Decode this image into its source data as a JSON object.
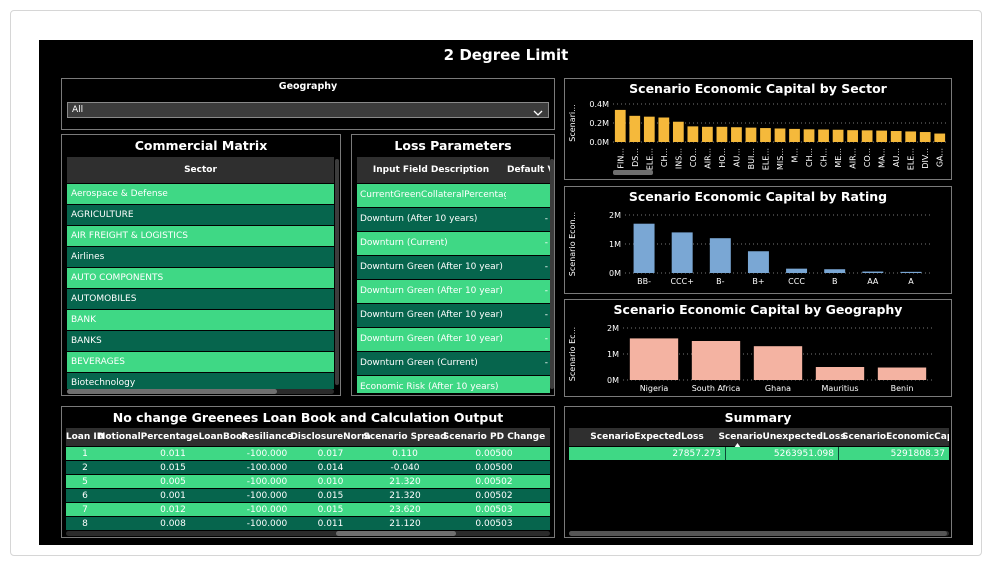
{
  "dashboard": {
    "title": "2 Degree Limit"
  },
  "geography": {
    "label": "Geography",
    "selected": "All"
  },
  "commercial_matrix": {
    "title": "Commercial Matrix",
    "column": "Sector",
    "items": [
      "Aerospace & Defense",
      "AGRICULTURE",
      "AIR FREIGHT & LOGISTICS",
      "Airlines",
      "AUTO COMPONENTS",
      "AUTOMOBILES",
      "BANK",
      "BANKS",
      "BEVERAGES",
      "Biotechnology"
    ]
  },
  "loss_parameters": {
    "title": "Loss Parameters",
    "columns": [
      "Input Field Description",
      "Default V"
    ],
    "rows": [
      {
        "desc": "CurrentGreenCollateralPercentage",
        "val": ""
      },
      {
        "desc": "Downturn (After 10 years)",
        "val": "-"
      },
      {
        "desc": "Downturn (Current)",
        "val": "-"
      },
      {
        "desc": "Downturn Green (After 10 year)",
        "val": "-"
      },
      {
        "desc": "Downturn Green (After 10 year)",
        "val": "-"
      },
      {
        "desc": "Downturn Green (After 10 year)",
        "val": "-"
      },
      {
        "desc": "Downturn Green (After 10 year)",
        "val": "-"
      },
      {
        "desc": "Downturn Green (Current)",
        "val": "-"
      },
      {
        "desc": "Economic Risk (After 10 years)",
        "val": ""
      }
    ]
  },
  "loan_book": {
    "title": "No change Greenees Loan Book and Calculation Output",
    "columns": [
      "Loan ID",
      "NotionalPercentageLoanBook",
      "Resiliance",
      "DisclosureNorm",
      "Scenario Spread",
      "Scenario PD Change"
    ],
    "rows": [
      [
        "1",
        "0.011",
        "-100.000",
        "0.017",
        "0.110",
        "0.00500"
      ],
      [
        "2",
        "0.015",
        "-100.000",
        "0.014",
        "-0.040",
        "0.00500"
      ],
      [
        "5",
        "0.005",
        "-100.000",
        "0.010",
        "21.320",
        "0.00502"
      ],
      [
        "6",
        "0.001",
        "-100.000",
        "0.015",
        "21.320",
        "0.00502"
      ],
      [
        "7",
        "0.012",
        "-100.000",
        "0.015",
        "23.620",
        "0.00503"
      ],
      [
        "8",
        "0.008",
        "-100.000",
        "0.011",
        "21.120",
        "0.00503"
      ]
    ]
  },
  "summary": {
    "title": "Summary",
    "columns": [
      "ScenarioExpectedLoss",
      "ScenarioUnexpectedLoss",
      "ScenarioEconomicCapita"
    ],
    "values": [
      "27857.273",
      "5263951.098",
      "5291808.37"
    ]
  },
  "colors": {
    "green_light": "#3fd885",
    "green_dark": "#06654d",
    "sector_bar": "#f5b93b",
    "rating_bar": "#7aa7d4",
    "geo_bar": "#f4b3a2"
  },
  "chart_data": [
    {
      "type": "bar",
      "title": "Scenario Economic Capital by Sector",
      "ylabel": "Scenari...",
      "yticks": [
        "0.4M",
        "0.2M",
        "0.0M"
      ],
      "ylim": [
        0,
        450000
      ],
      "categories": [
        "FIN...",
        "DS...",
        "ELE...",
        "CH...",
        "INS...",
        "CO...",
        "AIR...",
        "HO...",
        "AU...",
        "BUI...",
        "ELE...",
        "MIS...",
        "M...",
        "CH...",
        "CH...",
        "ME...",
        "AIR...",
        "CO...",
        "MA...",
        "AU...",
        "ELE...",
        "DIV...",
        "GA..."
      ],
      "values": [
        380000,
        310000,
        300000,
        290000,
        240000,
        185000,
        180000,
        180000,
        175000,
        170000,
        165000,
        160000,
        155000,
        150000,
        148000,
        145000,
        140000,
        138000,
        135000,
        130000,
        125000,
        118000,
        100000
      ]
    },
    {
      "type": "bar",
      "title": "Scenario Economic Capital by Rating",
      "ylabel": "Scenario Econ...",
      "yticks": [
        "2M",
        "1M",
        "0M"
      ],
      "ylim": [
        0,
        2000000
      ],
      "categories": [
        "BB-",
        "CCC+",
        "B-",
        "B+",
        "CCC",
        "B",
        "AA",
        "A"
      ],
      "values": [
        1700000,
        1400000,
        1200000,
        750000,
        150000,
        130000,
        50000,
        40000
      ]
    },
    {
      "type": "bar",
      "title": "Scenario Economic Capital by Geography",
      "ylabel": "Scenario Ec...",
      "yticks": [
        "2M",
        "1M",
        "0M"
      ],
      "ylim": [
        0,
        2000000
      ],
      "categories": [
        "Nigeria",
        "South Africa",
        "Ghana",
        "Mauritius",
        "Benin"
      ],
      "values": [
        1600000,
        1500000,
        1300000,
        500000,
        480000
      ]
    }
  ]
}
